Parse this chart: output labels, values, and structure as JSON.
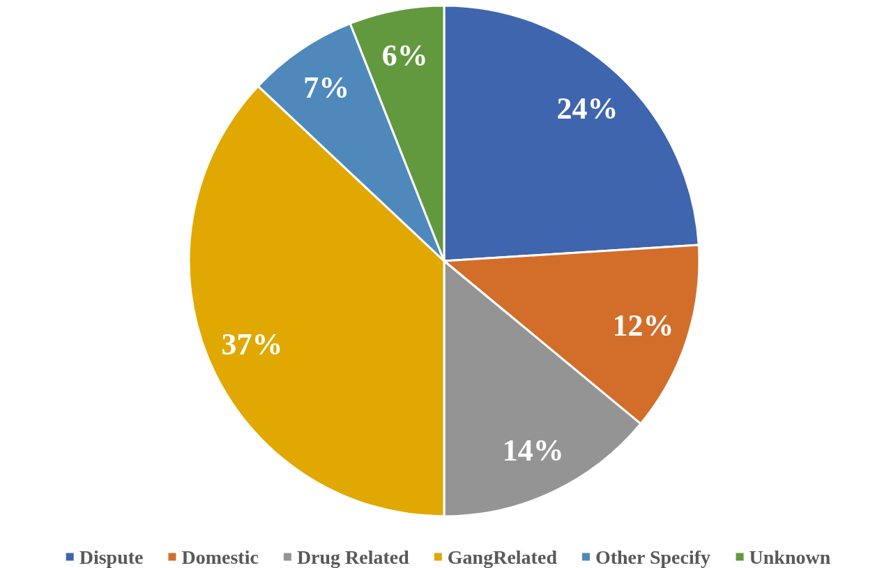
{
  "chart_data": {
    "type": "pie",
    "categories": [
      "Dispute",
      "Domestic",
      "Drug Related",
      "GangRelated",
      "Other Specify",
      "Unknown"
    ],
    "values": [
      24,
      12,
      14,
      37,
      7,
      6
    ],
    "colors": [
      "#3f65ae",
      "#d36e2a",
      "#949494",
      "#e0a800",
      "#4f89bc",
      "#62993e"
    ],
    "value_labels": [
      "24%",
      "12%",
      "14%",
      "37%",
      "7%",
      "6%"
    ],
    "legend": "bottom"
  }
}
